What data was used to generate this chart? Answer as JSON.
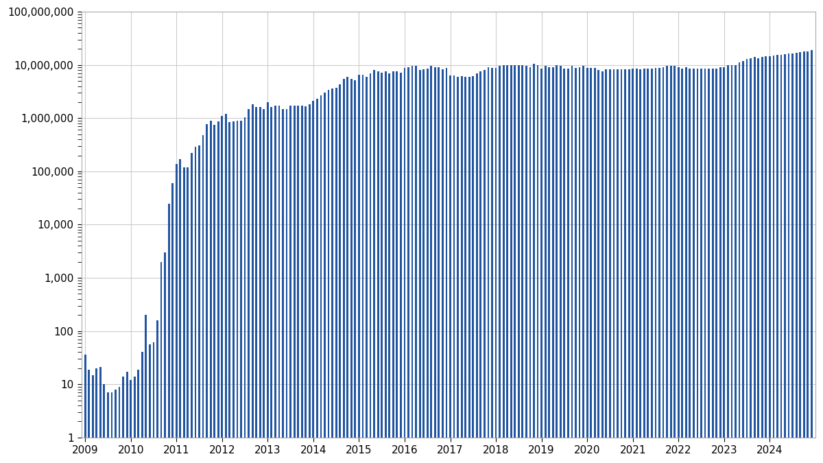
{
  "bar_color": "#2155a0",
  "bar_edge_color": "#1a4080",
  "background_color": "#ffffff",
  "ylim": [
    1,
    100000000
  ],
  "ylabel_ticks": [
    1,
    10,
    100,
    1000,
    10000,
    100000,
    1000000,
    10000000,
    100000000
  ],
  "ylabel_labels": [
    "1",
    "10",
    "100",
    "1,000",
    "10,000",
    "100,000",
    "1,000,000",
    "10,000,000",
    "100,000,000"
  ],
  "year_labels": [
    "2009",
    "2010",
    "2011",
    "2012",
    "2013",
    "2014",
    "2015",
    "2016",
    "2017",
    "2018",
    "2019",
    "2020",
    "2021",
    "2022",
    "2023",
    "2024"
  ],
  "monthly_values": [
    35,
    18,
    14,
    19,
    20,
    9,
    6,
    6,
    7,
    8,
    13,
    16,
    11,
    13,
    18,
    40,
    200,
    55,
    60,
    160,
    2000,
    3000,
    25000,
    60000,
    140000,
    170000,
    120000,
    120000,
    220000,
    290000,
    310000,
    480000,
    780000,
    900000,
    750000,
    870000,
    1100000,
    1200000,
    850000,
    870000,
    900000,
    900000,
    1050000,
    1500000,
    1800000,
    1600000,
    1600000,
    1500000,
    2000000,
    1600000,
    1700000,
    1700000,
    1500000,
    1500000,
    1700000,
    1700000,
    1700000,
    1700000,
    1650000,
    1800000,
    2100000,
    2300000,
    2700000,
    3000000,
    3400000,
    3600000,
    3700000,
    4300000,
    5500000,
    5900000,
    5500000,
    5200000,
    6600000,
    6600000,
    6000000,
    7000000,
    8000000,
    7500000,
    7200000,
    7600000,
    7000000,
    7500000,
    7600000,
    7100000,
    8800000,
    9200000,
    9600000,
    9600000,
    8000000,
    8300000,
    8600000,
    9500000,
    9000000,
    9000000,
    8400000,
    8700000,
    6400000,
    6400000,
    5900000,
    6100000,
    6000000,
    5900000,
    6200000,
    7000000,
    7600000,
    8000000,
    9000000,
    8800000,
    8800000,
    9500000,
    9800000,
    10000000,
    10000000,
    9800000,
    10000000,
    10000000,
    9500000,
    9000000,
    10500000,
    10000000,
    8500000,
    9500000,
    9000000,
    9000000,
    9800000,
    9500000,
    8500000,
    8500000,
    9500000,
    8800000,
    9000000,
    9600000,
    8800000,
    8800000,
    8800000,
    8000000,
    7600000,
    8200000,
    8200000,
    8200000,
    8200000,
    8200000,
    8200000,
    8200000,
    8500000,
    8500000,
    8300000,
    8500000,
    8500000,
    8600000,
    8800000,
    8800000,
    9200000,
    9500000,
    9500000,
    9500000,
    9000000,
    8500000,
    9000000,
    8500000,
    8500000,
    8500000,
    8500000,
    8500000,
    8500000,
    8500000,
    8500000,
    9000000,
    9000000,
    10000000,
    10000000,
    10000000,
    11000000,
    12000000,
    13000000,
    13500000,
    14000000,
    13500000,
    14000000,
    14500000,
    14500000,
    15000000,
    15500000,
    15500000,
    16000000,
    16500000,
    16500000,
    17000000,
    17500000,
    18000000,
    18000000,
    19000000
  ]
}
